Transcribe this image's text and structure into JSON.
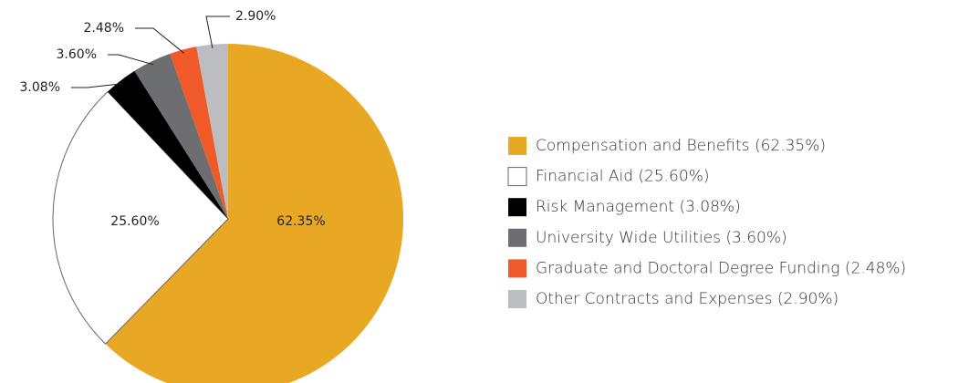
{
  "chart_data": {
    "type": "pie",
    "categories": [
      "Compensation and Benefits (62.35%)",
      "Financial Aid (25.60%)",
      "Risk Management (3.08%)",
      "University Wide Utilities (3.60%)",
      "Graduate and Doctoral Degree Funding (2.48%)",
      "Other Contracts and Expenses (2.90%)"
    ],
    "values": [
      62.35,
      25.6,
      3.08,
      3.6,
      2.48,
      2.9
    ],
    "value_labels": [
      "62.35%",
      "25.60%",
      "3.08%",
      "3.60%",
      "2.48%",
      "2.90%"
    ],
    "colors": [
      "#e9a823",
      "#ffffff",
      "#000000",
      "#6d6e71",
      "#f05a28",
      "#bcbdc0"
    ],
    "legend": "right"
  }
}
